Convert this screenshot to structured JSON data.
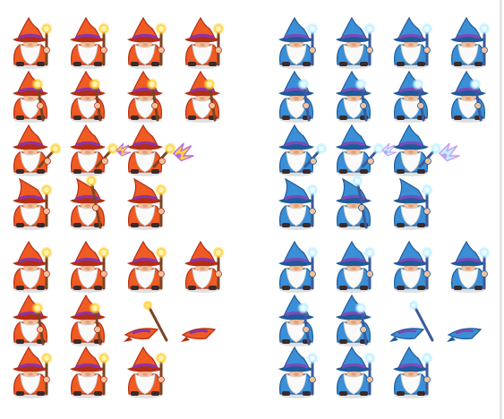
{
  "sprite_sheet": {
    "background": "#ffffff",
    "sets": [
      {
        "name": "fire-wizard",
        "robe": "#ef5b23",
        "robe_dark": "#b32d14",
        "band": "#8e33a8",
        "beard": "#fafafa",
        "skin": "#f1c29b",
        "staff": "#7b4423",
        "orb": "#ffd23f",
        "orb_glow": "#fff3b0",
        "spark": "#b86be0",
        "rows": [
          [
            "idle-staff-up",
            "idle-staff-up",
            "idle-staff-up",
            "idle-staff-up"
          ],
          [
            "idle-staff-side",
            "idle-staff-side",
            "idle-staff-side",
            "idle-staff-side"
          ],
          [
            "cast-ready",
            "cast-spark",
            "cast-spark-big"
          ],
          [
            "walk",
            "raise",
            "walk"
          ],
          [
            "idle-staff-up",
            "idle-staff-up",
            "idle-staff-up",
            "idle-staff-up"
          ],
          [
            "idle-staff-side",
            "idle-staff-side",
            "fallen-hat-staff",
            "fallen-hat"
          ],
          [
            "idle-staff-up",
            "idle-staff-up",
            "idle-staff-up"
          ]
        ]
      },
      {
        "name": "ice-wizard",
        "robe": "#3a8fd6",
        "robe_dark": "#1f5a9a",
        "band": "#7a4bb8",
        "beard": "#fafafa",
        "skin": "#f1c29b",
        "staff": "#3a5a9a",
        "orb": "#bff0ff",
        "orb_glow": "#e8fbff",
        "spark": "#c79cf0",
        "rows": [
          [
            "idle-staff-up",
            "idle-staff-up",
            "idle-staff-up",
            "idle-staff-up"
          ],
          [
            "idle-staff-side",
            "idle-staff-side",
            "idle-staff-side",
            "idle-staff-side"
          ],
          [
            "cast-ready",
            "cast-spark",
            "cast-spark-big"
          ],
          [
            "walk",
            "raise",
            "walk"
          ],
          [
            "idle-staff-up",
            "idle-staff-up",
            "idle-staff-up",
            "idle-staff-up"
          ],
          [
            "idle-staff-side",
            "idle-staff-side",
            "fallen-hat-staff",
            "fallen-hat"
          ],
          [
            "idle-staff-up",
            "idle-staff-up",
            "idle-staff-up"
          ]
        ]
      }
    ]
  }
}
